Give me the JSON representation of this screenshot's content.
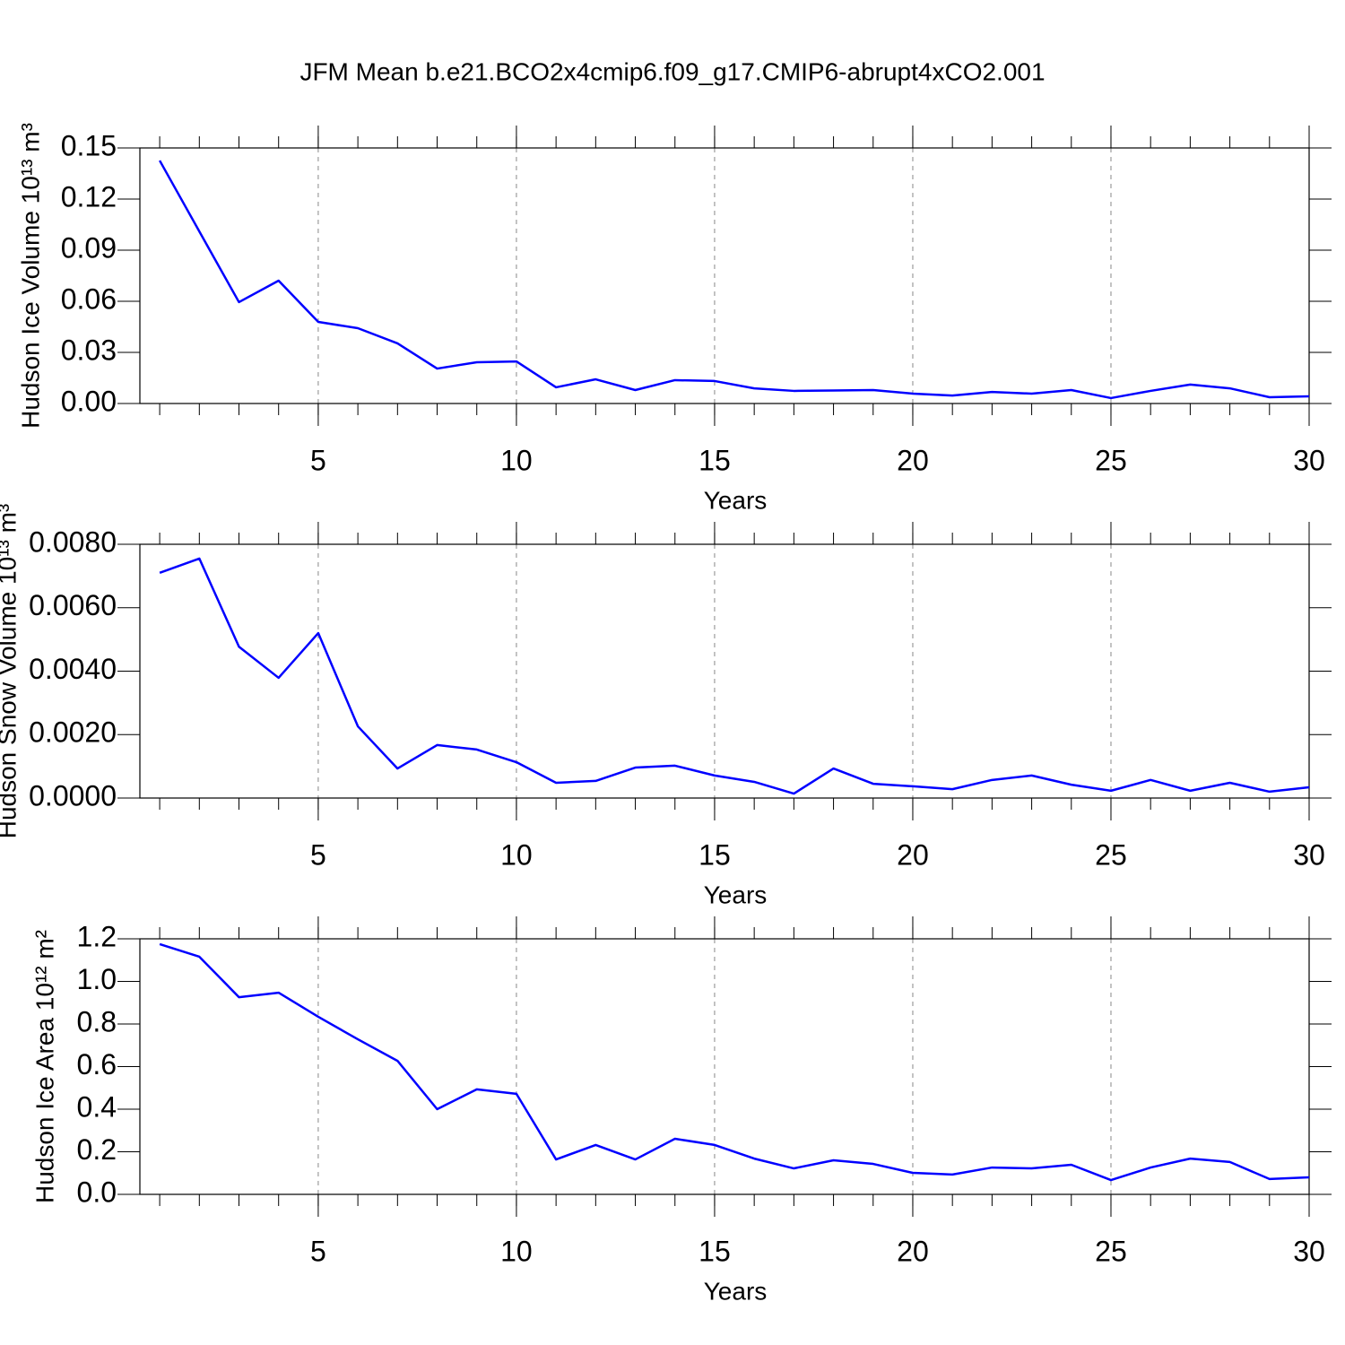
{
  "title": "JFM Mean b.e21.BCO2x4cmip6.f09_g17.CMIP6-abrupt4xCO2.001",
  "chart_data": [
    {
      "type": "line",
      "x_label": "Years",
      "y_label": "Hudson Ice Volume 10¹³ m³",
      "x": [
        1,
        2,
        3,
        4,
        5,
        6,
        7,
        8,
        9,
        10,
        11,
        12,
        13,
        14,
        15,
        16,
        17,
        18,
        19,
        20,
        21,
        22,
        23,
        24,
        25,
        26,
        27,
        28,
        29,
        30
      ],
      "series": [
        {
          "color": "#0000ff",
          "values": [
            0.1426,
            0.101,
            0.0595,
            0.0721,
            0.0479,
            0.0442,
            0.0353,
            0.0205,
            0.0242,
            0.0247,
            0.0095,
            0.0142,
            0.0079,
            0.0137,
            0.0132,
            0.0089,
            0.0074,
            0.0076,
            0.0079,
            0.0058,
            0.0047,
            0.0068,
            0.0058,
            0.0079,
            0.0032,
            0.0074,
            0.0111,
            0.0089,
            0.0037,
            0.0042
          ]
        }
      ],
      "xlim": [
        0.5,
        30
      ],
      "xticks": [
        5,
        10,
        15,
        20,
        25,
        30
      ],
      "ylim": [
        0,
        0.15
      ],
      "yticks": [
        {
          "value": 0,
          "label": "0.00"
        },
        0.03,
        0.06,
        0.09,
        0.12,
        0.15
      ],
      "x_grid": true
    },
    {
      "type": "line",
      "x_label": "Years",
      "y_label": "Hudson Snow Volume 10¹³ m³",
      "x": [
        1,
        2,
        3,
        4,
        5,
        6,
        7,
        8,
        9,
        10,
        11,
        12,
        13,
        14,
        15,
        16,
        17,
        18,
        19,
        20,
        21,
        22,
        23,
        24,
        25,
        26,
        27,
        28,
        29,
        30
      ],
      "series": [
        {
          "color": "#0000ff",
          "values": [
            0.0071,
            0.00755,
            0.00477,
            0.00379,
            0.0052,
            0.00226,
            0.00093,
            0.00167,
            0.00153,
            0.00113,
            0.00048,
            0.00054,
            0.00096,
            0.00102,
            0.00071,
            0.00051,
            0.00014,
            0.00093,
            0.00045,
            0.00037,
            0.00028,
            0.00057,
            0.00071,
            0.00042,
            0.00023,
            0.00057,
            0.00023,
            0.00048,
            0.0002,
            0.00034
          ]
        }
      ],
      "xlim": [
        0.5,
        30
      ],
      "xticks": [
        5,
        10,
        15,
        20,
        25,
        30
      ],
      "ylim": [
        0,
        0.008
      ],
      "yticks": [
        {
          "value": 0,
          "label": "0.0000"
        },
        {
          "value": 0.002,
          "label": "0.0020"
        },
        {
          "value": 0.004,
          "label": "0.0040"
        },
        {
          "value": 0.006,
          "label": "0.0060"
        },
        {
          "value": 0.008,
          "label": "0.0080"
        }
      ],
      "x_grid": true
    },
    {
      "type": "line",
      "x_label": "Years",
      "y_label": "Hudson Ice Area 10¹² m²",
      "x": [
        1,
        2,
        3,
        4,
        5,
        6,
        7,
        8,
        9,
        10,
        11,
        12,
        13,
        14,
        15,
        16,
        17,
        18,
        19,
        20,
        21,
        22,
        23,
        24,
        25,
        26,
        27,
        28,
        29,
        30
      ],
      "series": [
        {
          "color": "#0000ff",
          "values": [
            1.175,
            1.116,
            0.926,
            0.947,
            0.834,
            0.728,
            0.627,
            0.4,
            0.493,
            0.472,
            0.164,
            0.232,
            0.164,
            0.261,
            0.232,
            0.168,
            0.122,
            0.16,
            0.143,
            0.101,
            0.093,
            0.126,
            0.122,
            0.139,
            0.067,
            0.126,
            0.168,
            0.152,
            0.072,
            0.08
          ]
        }
      ],
      "xlim": [
        0.5,
        30
      ],
      "xticks": [
        5,
        10,
        15,
        20,
        25,
        30
      ],
      "ylim": [
        0,
        1.2
      ],
      "yticks": [
        {
          "value": 0,
          "label": "0.0"
        },
        0.2,
        0.4,
        0.6,
        {
          "value": 1,
          "label": "1.0"
        },
        1.2,
        0.8
      ],
      "x_grid": true
    }
  ]
}
